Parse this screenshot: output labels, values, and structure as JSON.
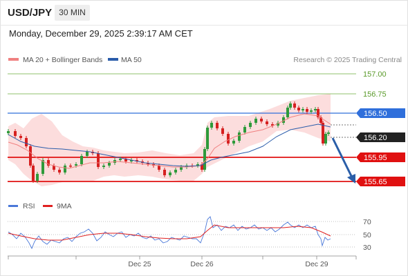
{
  "header": {
    "symbol": "USD/JPY",
    "timeframe": "30 MIN"
  },
  "timestamp": "Monday, December 29, 2025 2:39:17 AM CET",
  "legend": {
    "ma20": {
      "label": "MA 20 + Bollinger Bands",
      "color": "#f08080"
    },
    "ma50": {
      "label": "MA 50",
      "color": "#2a5caa"
    }
  },
  "copyright": "Research © 2025 Trading Central",
  "levels": {
    "l157_00": "157.00",
    "l156_75": "156.75",
    "l156_50": "156.50",
    "l156_20": "156.20",
    "l155_95": "155.95",
    "l155_65": "155.65"
  },
  "colors": {
    "up": "#2e9a3a",
    "down": "#d62020",
    "resistance": "#2f6fdb",
    "support": "#e01010",
    "arrow": "#2a5ea8",
    "price_tag": "#222222"
  },
  "rsi": {
    "legend_rsi": "RSI",
    "legend_9ma": "9MA",
    "ticks": [
      "70",
      "50",
      "30"
    ],
    "rsi_color": "#4a78d8",
    "ma_color": "#e02020"
  },
  "xaxis": {
    "ticks": [
      "Dec 25",
      "Dec 26",
      "Dec 29"
    ]
  }
}
